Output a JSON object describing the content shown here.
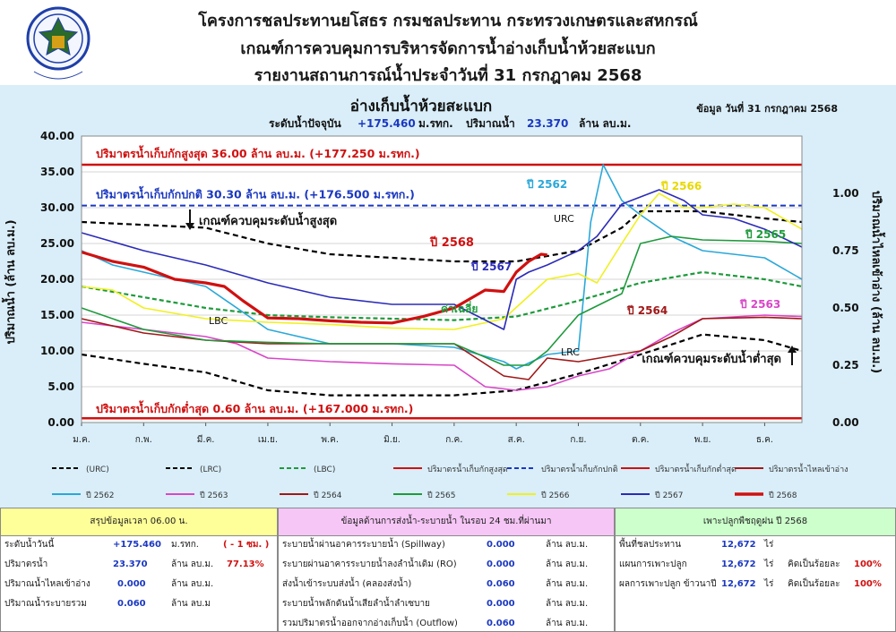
{
  "header": {
    "line1": "โครงการชลประทานยโสธร กรมชลประทาน กระทรวงเกษตรและสหกรณ์",
    "line2": "เกณฑ์การควบคุมการบริหารจัดการน้ำอ่างเก็บน้ำห้วยสะแบก",
    "line3": "รายงานสถานการณ์น้ำประจำวันที่ 31 กรกฎาคม 2568",
    "logo_text": "กรมชลประทาน"
  },
  "chart_data": {
    "type": "line",
    "title": "อ่างเก็บน้ำห้วยสะแบก",
    "subtitle_prefix": "ระดับน้ำปัจจุบัน",
    "subtitle_level": "+175.460",
    "subtitle_level_unit": "ม.รทก.",
    "subtitle_vol_prefix": "ปริมาณน้ำ",
    "subtitle_vol": "23.370",
    "subtitle_vol_unit": "ล้าน ลบ.ม.",
    "data_date": "ข้อมูล วันที่ 31 กรกฎาคม 2568",
    "ylabel": "ปริมาณน้ำ (ล้าน ลบ.ม.)",
    "y2label": "ปริมาณน้ำไหลเข้าอ่าง (ล้าน ลบ.ม.)",
    "ylim": [
      0,
      40
    ],
    "y2lim": [
      0,
      1.25
    ],
    "yticks": [
      "0.00",
      "5.00",
      "10.00",
      "15.00",
      "20.00",
      "25.00",
      "30.00",
      "35.00",
      "40.00"
    ],
    "y2ticks": [
      "0.00",
      "0.25",
      "0.50",
      "0.75",
      "1.00"
    ],
    "xticks": [
      "ม.ค.",
      "ก.พ.",
      "มี.ค.",
      "เม.ย.",
      "พ.ค.",
      "มิ.ย.",
      "ก.ค.",
      "ส.ค.",
      "ก.ย.",
      "ต.ค.",
      "พ.ย.",
      "ธ.ค."
    ],
    "hlines": [
      {
        "name": "ปริมาตรน้ำเก็บกักสูงสุด",
        "y": 36.0,
        "color": "#d01010",
        "label": "ปริมาตรน้ำเก็บกักสูงสุด  36.00  ล้าน ลบ.ม. (+177.250 ม.รทก.)"
      },
      {
        "name": "ปริมาตรน้ำเก็บกักปกติ",
        "y": 30.3,
        "color": "#1b38c0",
        "label": "ปริมาตรน้ำเก็บกักปกติ 30.30 ล้าน ลบ.ม. (+176.500 ม.รทก.)"
      },
      {
        "name": "ปริมาตรน้ำเก็บกักต่ำสุด",
        "y": 0.6,
        "color": "#d01010",
        "label": "ปริมาตรน้ำเก็บกักต่ำสุด 0.60 ล้าน ลบ.ม. (+167.000 ม.รทก.)"
      }
    ],
    "annotations": {
      "upper_rule": "เกณฑ์ควบคุมระดับน้ำสูงสุด",
      "lower_rule": "เกณฑ์ควบคุมระดับน้ำต่ำสุด",
      "urc": "URC",
      "lrc": "LRC",
      "lbc": "LBC",
      "avg": "ค่าเฉลี่ย",
      "y2568": "ปี 2568",
      "y2567": "ปี 2567",
      "y2566": "ปี 2566",
      "y2565": "ปี 2565",
      "y2564": "ปี 2564",
      "y2563": "ปี 2563",
      "y2562": "ปี 2562"
    },
    "series": [
      {
        "name": "(URC)",
        "color": "#000000",
        "dash": true,
        "x": [
          0,
          1,
          2,
          3,
          4,
          5,
          6,
          7,
          8,
          8.7,
          9,
          10,
          11,
          11.6
        ],
        "y": [
          28,
          27.6,
          27.2,
          25,
          23.5,
          23,
          22.5,
          22.5,
          24,
          27.2,
          29.5,
          29.5,
          28.5,
          28
        ]
      },
      {
        "name": "(LRC)",
        "color": "#000000",
        "dash": true,
        "x": [
          0,
          1,
          2,
          3,
          4,
          5,
          6,
          7,
          8,
          9,
          10,
          11,
          11.6
        ],
        "y": [
          9.5,
          8.2,
          7,
          4.5,
          3.8,
          3.8,
          3.8,
          4.5,
          6.8,
          9.5,
          12.3,
          11.5,
          10
        ]
      },
      {
        "name": "(LBC)",
        "color": "#1e9a3c",
        "dash": true,
        "x": [
          0,
          1,
          2,
          3,
          4,
          5,
          6,
          7,
          8,
          9,
          10,
          11,
          11.6
        ],
        "y": [
          19,
          17.5,
          16,
          15,
          14.7,
          14.5,
          14.3,
          14.8,
          17,
          19.5,
          21,
          20,
          19
        ]
      },
      {
        "name": "ปี 2562",
        "color": "#2aa8d8",
        "x": [
          0,
          0.5,
          1,
          2,
          3,
          4,
          5,
          6,
          6.8,
          7,
          7.5,
          8,
          8.2,
          8.4,
          8.7,
          9,
          9.5,
          10,
          11,
          11.6
        ],
        "y": [
          24,
          22,
          21,
          19,
          13,
          11,
          11,
          10.5,
          8.5,
          7.5,
          9.5,
          10,
          28,
          36,
          31,
          29,
          26,
          24,
          23,
          20
        ]
      },
      {
        "name": "ปี 2563",
        "color": "#d846c8",
        "x": [
          0,
          1,
          2,
          2.5,
          3,
          4,
          5,
          6,
          6.5,
          7,
          7.5,
          8,
          8.5,
          9,
          9.5,
          10,
          11,
          11.6
        ],
        "y": [
          14,
          13,
          12,
          11,
          9,
          8.5,
          8.2,
          8,
          5,
          4.5,
          5,
          6.5,
          7.5,
          10,
          12.5,
          14.5,
          15,
          14.8
        ]
      },
      {
        "name": "ปี 2564",
        "color": "#a01818",
        "x": [
          0,
          1,
          2,
          3,
          4,
          5,
          6,
          6.8,
          7.2,
          7.5,
          8,
          9,
          9.5,
          10,
          11,
          11.6
        ],
        "y": [
          14.5,
          12.5,
          11.5,
          11,
          11,
          11,
          11,
          6.5,
          6,
          9,
          8.5,
          10,
          12,
          14.5,
          14.7,
          14.5
        ]
      },
      {
        "name": "ปี 2565",
        "color": "#1e9a3c",
        "x": [
          0,
          1,
          2,
          3,
          4,
          5,
          6,
          6.8,
          7.2,
          7.5,
          8,
          8.7,
          9,
          9.5,
          10,
          11,
          11.6
        ],
        "y": [
          16,
          13,
          11.5,
          11.2,
          11,
          11,
          11,
          8,
          8,
          10,
          15,
          18,
          25,
          26,
          25.5,
          25.3,
          25
        ]
      },
      {
        "name": "ปี 2566",
        "color": "#f0f020",
        "x": [
          0,
          0.5,
          1,
          2,
          3,
          4,
          5,
          6,
          6.8,
          7.5,
          8,
          8.3,
          8.7,
          9,
          9.3,
          9.7,
          10,
          10.5,
          11,
          11.6
        ],
        "y": [
          19,
          18.5,
          16,
          14.5,
          14,
          13.7,
          13.2,
          13,
          14.5,
          20,
          20.8,
          19.5,
          25,
          29,
          32,
          30,
          30,
          30.5,
          30,
          27
        ]
      },
      {
        "name": "ปี 2567",
        "color": "#2b2bb8",
        "x": [
          0,
          1,
          2,
          3,
          4,
          5,
          6,
          6.8,
          7,
          7.2,
          7.5,
          8,
          8.3,
          8.7,
          9,
          9.3,
          9.7,
          10,
          10.5,
          11,
          11.6
        ],
        "y": [
          26.5,
          24,
          22,
          19.5,
          17.5,
          16.5,
          16.5,
          13,
          20,
          21,
          22,
          24,
          26,
          30.5,
          31.5,
          32.5,
          31,
          29,
          28.5,
          27,
          24.5
        ]
      },
      {
        "name": "ปี 2568",
        "color": "#d01010",
        "bold": true,
        "x": [
          0,
          0.5,
          1,
          1.5,
          2,
          2.3,
          2.6,
          3,
          3.5,
          4,
          4.5,
          5,
          5.5,
          6,
          6.5,
          6.8,
          7,
          7.2,
          7.4,
          7.5
        ],
        "y": [
          23.8,
          22.5,
          21.7,
          20,
          19.5,
          19,
          17,
          14.6,
          14.5,
          14.2,
          14,
          13.9,
          14.8,
          16,
          18.5,
          18.3,
          21,
          22.5,
          23.5,
          23.4
        ]
      }
    ],
    "legend": [
      {
        "label": "(URC)",
        "color": "#000000",
        "style": "dash"
      },
      {
        "label": "(LRC)",
        "color": "#000000",
        "style": "dash"
      },
      {
        "label": "(LBC)",
        "color": "#1e9a3c",
        "style": "dash"
      },
      {
        "label": "ปริมาตรน้ำเก็บกักสูงสุด",
        "color": "#d01010",
        "style": "solid"
      },
      {
        "label": "ปริมาตรน้ำเก็บกักปกติ",
        "color": "#1b38c0",
        "style": "dash"
      },
      {
        "label": "ปริมาตรน้ำเก็บกักต่ำสุด",
        "color": "#d01010",
        "style": "solid"
      },
      {
        "label": "ปริมาตรน้ำไหลเข้าอ่าง",
        "color": "#a01818",
        "style": "solid"
      },
      {
        "label": "ปี 2562",
        "color": "#2aa8d8",
        "style": "solid"
      },
      {
        "label": "ปี 2563",
        "color": "#d846c8",
        "style": "solid"
      },
      {
        "label": "ปี 2564",
        "color": "#a01818",
        "style": "solid"
      },
      {
        "label": "ปี 2565",
        "color": "#1e9a3c",
        "style": "solid"
      },
      {
        "label": "ปี 2566",
        "color": "#f0f020",
        "style": "solid"
      },
      {
        "label": "ปี 2567",
        "color": "#2b2bb8",
        "style": "solid"
      },
      {
        "label": "ปี 2568",
        "color": "#d01010",
        "style": "bold"
      }
    ]
  },
  "summary": {
    "left": {
      "title": "สรุปข้อมูลเวลา 06.00 น.",
      "rows": [
        {
          "label": "ระดับน้ำวันนี้",
          "value": "+175.460",
          "unit": "ม.รทก.",
          "extra": "( - 1 ซม. )"
        },
        {
          "label": "ปริมาตรน้ำ",
          "value": "23.370",
          "unit": "ล้าน ลบ.ม.",
          "extra": "77.13%"
        },
        {
          "label": "ปริมาณน้ำไหลเข้าอ่าง",
          "value": "0.000",
          "unit": "ล้าน ลบ.ม.",
          "extra": ""
        },
        {
          "label": "ปริมาณน้ำระบายรวม",
          "value": "0.060",
          "unit": "ล้าน ลบ.ม",
          "extra": ""
        }
      ]
    },
    "middle": {
      "title": "ข้อมูลด้านการส่งน้ำ-ระบายน้ำ ในรอบ 24 ชม.ที่ผ่านมา",
      "rows": [
        {
          "label": "ระบายน้ำผ่านอาคารระบายน้ำ (Spillway)",
          "value": "0.000",
          "unit": "ล้าน ลบ.ม."
        },
        {
          "label": "ระบายผ่านอาคารระบายน้ำลงลำน้ำเดิม (RO)",
          "value": "0.000",
          "unit": "ล้าน ลบ.ม."
        },
        {
          "label": "ส่งน้ำเข้าระบบส่งน้ำ (คลองส่งน้ำ)",
          "value": "0.060",
          "unit": "ล้าน ลบ.ม."
        },
        {
          "label": "ระบายน้ำพลักดันน้ำเสียลำน้ำลำเซบาย",
          "value": "0.000",
          "unit": "ล้าน ลบ.ม."
        },
        {
          "label": "รวมปริมาตรน้ำออกจากอ่างเก็บน้ำ (Outflow)",
          "value": "0.060",
          "unit": "ล้าน ลบ.ม."
        }
      ]
    },
    "right": {
      "title": "เพาะปลูกพืชฤดูฝน ปี 2568",
      "rows": [
        {
          "label": "พื้นที่ชลประทาน",
          "value": "12,672",
          "unit": "ไร่",
          "note": "",
          "pct": ""
        },
        {
          "label": "แผนการเพาะปลูก",
          "value": "12,672",
          "unit": "ไร่",
          "note": "คิดเป็นร้อยละ",
          "pct": "100%"
        },
        {
          "label": "ผลการเพาะปลูก ข้าวนาปี",
          "value": "12,672",
          "unit": "ไร่",
          "note": "คิดเป็นร้อยละ",
          "pct": "100%"
        }
      ]
    }
  }
}
